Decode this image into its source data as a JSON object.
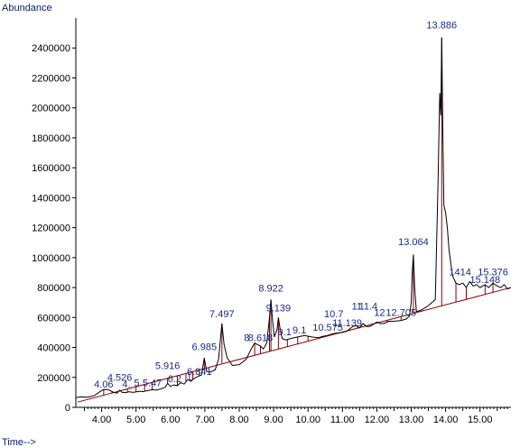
{
  "chart_data": {
    "type": "line",
    "ylabel": "Abundance",
    "xlabel": "Time-->",
    "xlim": [
      3.25,
      15.9
    ],
    "ylim": [
      0,
      2600000
    ],
    "yticks": [
      0,
      200000,
      400000,
      600000,
      800000,
      1000000,
      1200000,
      1400000,
      1600000,
      1800000,
      2000000,
      2200000,
      2400000
    ],
    "ytick_labels": [
      "0",
      "200000",
      "400000",
      "600000",
      "800000",
      "1000000",
      "1200000",
      "1400000",
      "1600000",
      "1800000",
      "2000000",
      "2200000",
      "2400000"
    ],
    "xticks": [
      4,
      5,
      6,
      7,
      8,
      9,
      10,
      11,
      12,
      13,
      14,
      15
    ],
    "xtick_labels": [
      "4.00",
      "5.00",
      "6.00",
      "7.00",
      "8.00",
      "9.00",
      "10.00",
      "11.00",
      "12.00",
      "13.00",
      "14.00",
      "15.00"
    ],
    "grid": false,
    "series": [
      {
        "points": [
          [
            3.25,
            65000
          ],
          [
            3.4,
            70000
          ],
          [
            3.6,
            68000
          ],
          [
            3.8,
            80000
          ],
          [
            3.95,
            105000
          ],
          [
            4.06,
            120000
          ],
          [
            4.2,
            118000
          ],
          [
            4.35,
            100000
          ],
          [
            4.45,
            95000
          ],
          [
            4.526,
            115000
          ],
          [
            4.6,
            100000
          ],
          [
            4.7,
            98000
          ],
          [
            4.8,
            105000
          ],
          [
            4.9,
            100000
          ],
          [
            5.0,
            103000
          ],
          [
            5.1,
            108000
          ],
          [
            5.2,
            105000
          ],
          [
            5.3,
            110000
          ],
          [
            5.47,
            118000
          ],
          [
            5.6,
            115000
          ],
          [
            5.75,
            125000
          ],
          [
            5.85,
            135000
          ],
          [
            5.916,
            160000
          ],
          [
            6.0,
            140000
          ],
          [
            6.1,
            150000
          ],
          [
            6.2,
            145000
          ],
          [
            6.3,
            165000
          ],
          [
            6.4,
            155000
          ],
          [
            6.5,
            185000
          ],
          [
            6.6,
            175000
          ],
          [
            6.7,
            195000
          ],
          [
            6.841,
            210000
          ],
          [
            6.9,
            215000
          ],
          [
            6.985,
            330000
          ],
          [
            7.05,
            240000
          ],
          [
            7.15,
            235000
          ],
          [
            7.3,
            250000
          ],
          [
            7.4,
            320000
          ],
          [
            7.497,
            560000
          ],
          [
            7.56,
            420000
          ],
          [
            7.65,
            330000
          ],
          [
            7.8,
            280000
          ],
          [
            8.0,
            285000
          ],
          [
            8.2,
            320000
          ],
          [
            8.35,
            390000
          ],
          [
            8.45,
            430000
          ],
          [
            8.52,
            420000
          ],
          [
            8.618,
            410000
          ],
          [
            8.7,
            390000
          ],
          [
            8.8,
            430000
          ],
          [
            8.88,
            600000
          ],
          [
            8.922,
            720000
          ],
          [
            8.97,
            580000
          ],
          [
            9.02,
            470000
          ],
          [
            9.1,
            520000
          ],
          [
            9.139,
            600000
          ],
          [
            9.19,
            520000
          ],
          [
            9.25,
            460000
          ],
          [
            9.35,
            450000
          ],
          [
            9.5,
            460000
          ],
          [
            9.7,
            470000
          ],
          [
            9.9,
            480000
          ],
          [
            10.1,
            470000
          ],
          [
            10.3,
            465000
          ],
          [
            10.45,
            475000
          ],
          [
            10.575,
            480000
          ],
          [
            10.7,
            490000
          ],
          [
            10.8,
            495000
          ],
          [
            11.0,
            500000
          ],
          [
            11.139,
            510000
          ],
          [
            11.3,
            540000
          ],
          [
            11.4,
            545000
          ],
          [
            11.5,
            530000
          ],
          [
            11.6,
            560000
          ],
          [
            11.7,
            540000
          ],
          [
            11.8,
            540000
          ],
          [
            11.9,
            555000
          ],
          [
            12.0,
            570000
          ],
          [
            12.1,
            560000
          ],
          [
            12.2,
            560000
          ],
          [
            12.35,
            575000
          ],
          [
            12.5,
            575000
          ],
          [
            12.705,
            580000
          ],
          [
            12.85,
            590000
          ],
          [
            12.95,
            610000
          ],
          [
            13.0,
            700000
          ],
          [
            13.03,
            900000
          ],
          [
            13.064,
            1020000
          ],
          [
            13.1,
            800000
          ],
          [
            13.15,
            640000
          ],
          [
            13.3,
            650000
          ],
          [
            13.5,
            680000
          ],
          [
            13.7,
            720000
          ],
          [
            13.78,
            1500000
          ],
          [
            13.83,
            2100000
          ],
          [
            13.86,
            1950000
          ],
          [
            13.886,
            2470000
          ],
          [
            13.92,
            1800000
          ],
          [
            13.95,
            1350000
          ],
          [
            14.0,
            1300000
          ],
          [
            14.05,
            1200000
          ],
          [
            14.1,
            1050000
          ],
          [
            14.2,
            880000
          ],
          [
            14.3,
            830000
          ],
          [
            14.4,
            820000
          ],
          [
            14.5,
            830000
          ],
          [
            14.6,
            800000
          ],
          [
            14.7,
            840000
          ],
          [
            14.8,
            810000
          ],
          [
            14.9,
            820000
          ],
          [
            15.0,
            800000
          ],
          [
            15.148,
            820000
          ],
          [
            15.25,
            800000
          ],
          [
            15.376,
            830000
          ],
          [
            15.5,
            810000
          ],
          [
            15.6,
            800000
          ],
          [
            15.7,
            820000
          ],
          [
            15.8,
            790000
          ],
          [
            15.9,
            800000
          ]
        ]
      }
    ],
    "baseline": [
      [
        3.3,
        35000
      ],
      [
        15.9,
        800000
      ]
    ],
    "integration_drops": [
      4.06,
      4.3,
      4.526,
      4.75,
      5.0,
      5.25,
      5.47,
      5.916,
      6.2,
      6.45,
      6.65,
      6.841,
      6.985,
      7.497,
      8.45,
      8.618,
      8.88,
      8.922,
      9.139,
      9.4,
      9.7,
      10.0,
      10.3,
      10.575,
      10.85,
      11.139,
      11.45,
      11.7,
      12.0,
      12.3,
      12.705,
      13.064,
      13.886,
      14.3,
      14.6,
      15.148,
      15.376
    ],
    "annotations": [
      {
        "text": "4.06",
        "x": 4.06,
        "y": 120000
      },
      {
        "text": "4.526",
        "x": 4.526,
        "y": 165000
      },
      {
        "text": "4.",
        "x": 4.72,
        "y": 120000
      },
      {
        "text": "5",
        "x": 5.02,
        "y": 130000
      },
      {
        "text": "5.47",
        "x": 5.47,
        "y": 130000
      },
      {
        "text": "5.916",
        "x": 5.916,
        "y": 245000
      },
      {
        "text": "6.2",
        "x": 6.12,
        "y": 155000
      },
      {
        "text": "1",
        "x": 6.55,
        "y": 170000
      },
      {
        "text": "6.841",
        "x": 6.841,
        "y": 205000
      },
      {
        "text": "6.985",
        "x": 6.985,
        "y": 370000
      },
      {
        "text": "7.497",
        "x": 7.497,
        "y": 590000
      },
      {
        "text": "8",
        "x": 8.22,
        "y": 430000
      },
      {
        "text": "8.618",
        "x": 8.618,
        "y": 430000
      },
      {
        "text": "8.922",
        "x": 8.922,
        "y": 760000
      },
      {
        "text": "9.139",
        "x": 9.139,
        "y": 630000
      },
      {
        "text": "9.1",
        "x": 9.32,
        "y": 470000
      },
      {
        "text": "9.1",
        "x": 9.75,
        "y": 480000
      },
      {
        "text": "10.7",
        "x": 10.75,
        "y": 590000
      },
      {
        "text": "10.575",
        "x": 10.575,
        "y": 500000
      },
      {
        "text": "11.139",
        "x": 11.139,
        "y": 530000
      },
      {
        "text": "11",
        "x": 11.42,
        "y": 640000
      },
      {
        "text": "11.4",
        "x": 11.75,
        "y": 640000
      },
      {
        "text": "12",
        "x": 12.08,
        "y": 600000
      },
      {
        "text": "12.705",
        "x": 12.705,
        "y": 600000
      },
      {
        "text": "13.064",
        "x": 13.064,
        "y": 1070000
      },
      {
        "text": "13.886",
        "x": 13.886,
        "y": 2520000
      },
      {
        "text": "1414",
        "x": 14.42,
        "y": 870000
      },
      {
        "text": "15.148",
        "x": 15.148,
        "y": 820000
      },
      {
        "text": "15.376",
        "x": 15.376,
        "y": 870000
      }
    ],
    "colors": {
      "trace": "#000000",
      "baseline": "#8b0000",
      "drops": "#8b0000",
      "labels": "#1b2a8a",
      "axis_title": "#0a1a6e"
    }
  }
}
